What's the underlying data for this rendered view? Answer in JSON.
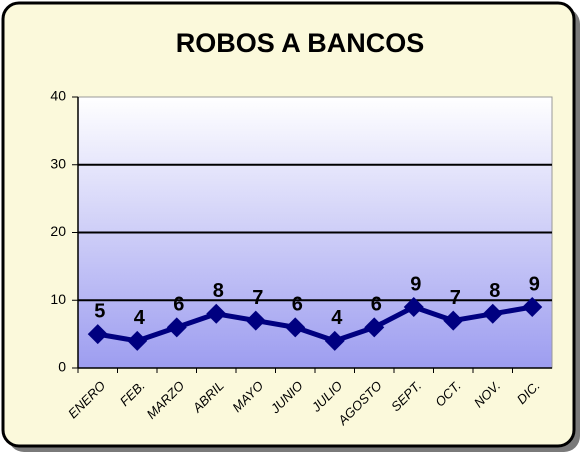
{
  "chart_data": {
    "type": "line",
    "title": "ROBOS A BANCOS",
    "categories": [
      "ENERO",
      "FEB.",
      "MARZO",
      "ABRIL",
      "MAYO",
      "JUNIO",
      "JULIO",
      "AGOSTO",
      "SEPT.",
      "OCT.",
      "NOV.",
      "DIC."
    ],
    "values": [
      5,
      4,
      6,
      8,
      7,
      6,
      4,
      6,
      9,
      7,
      8,
      9
    ],
    "color": "#000080",
    "ylim": [
      0,
      40
    ],
    "yticks": [
      0,
      10,
      20,
      30,
      40
    ],
    "grid": true
  }
}
